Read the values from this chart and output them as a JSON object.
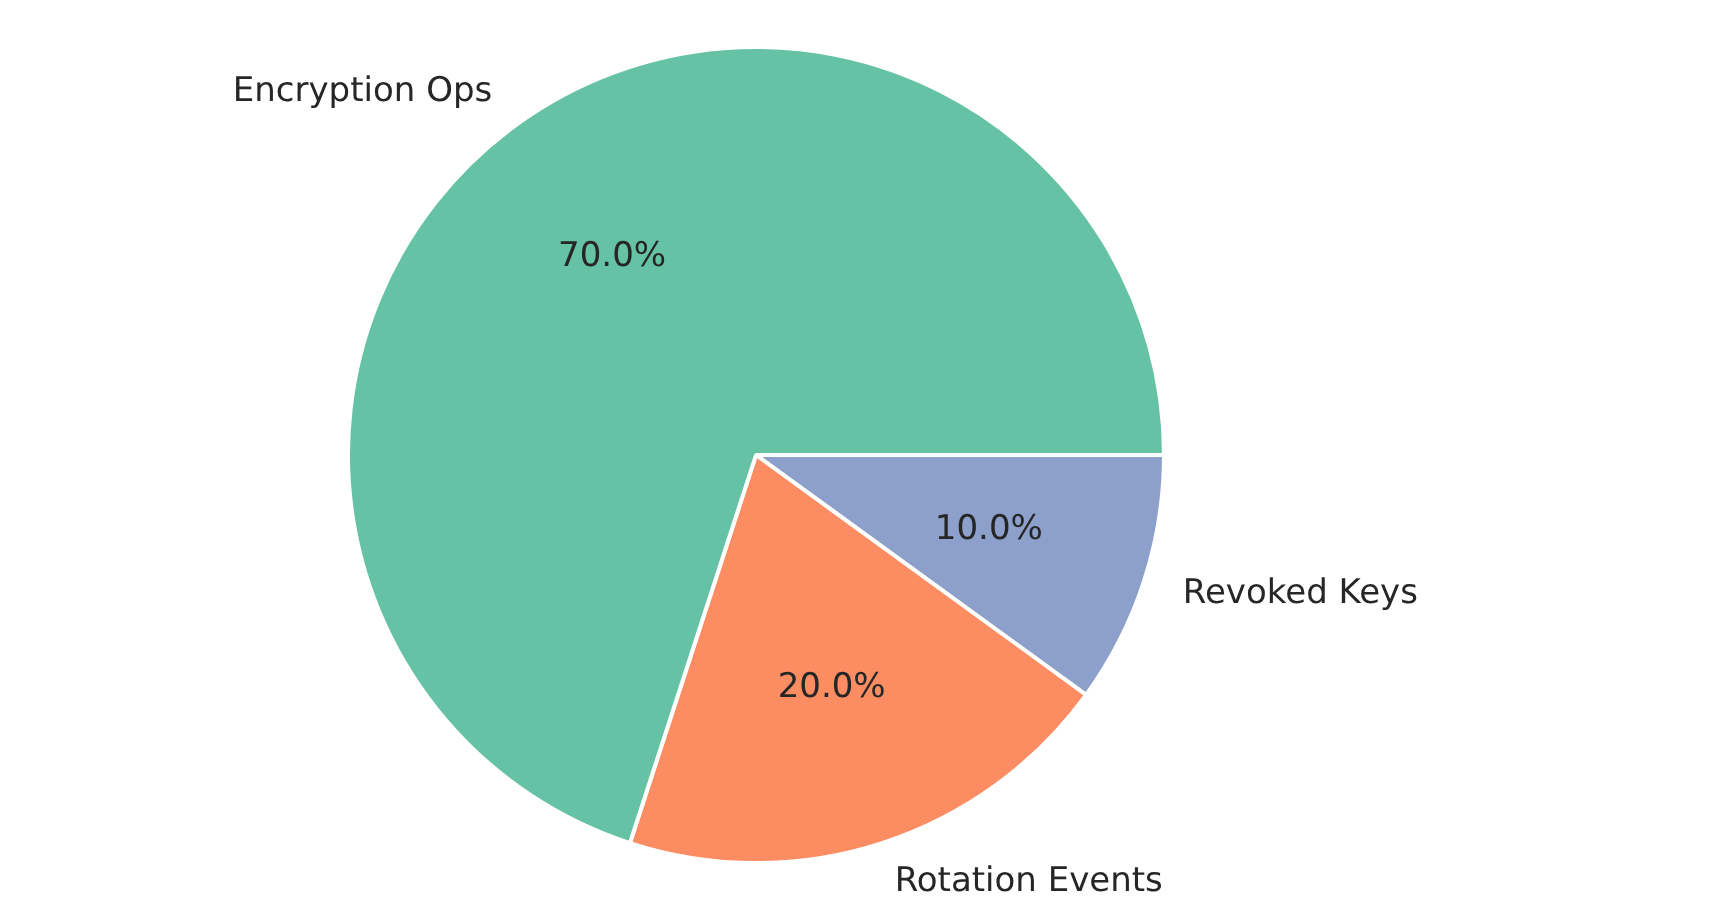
{
  "chart_data": {
    "type": "pie",
    "categories": [
      "Encryption Ops",
      "Rotation Events",
      "Revoked Keys"
    ],
    "values": [
      70,
      20,
      10
    ],
    "colors": [
      "#66c2a5",
      "#fc8d62",
      "#8da0cb"
    ],
    "value_labels": [
      "70.0%",
      "20.0%",
      "10.0%"
    ]
  }
}
